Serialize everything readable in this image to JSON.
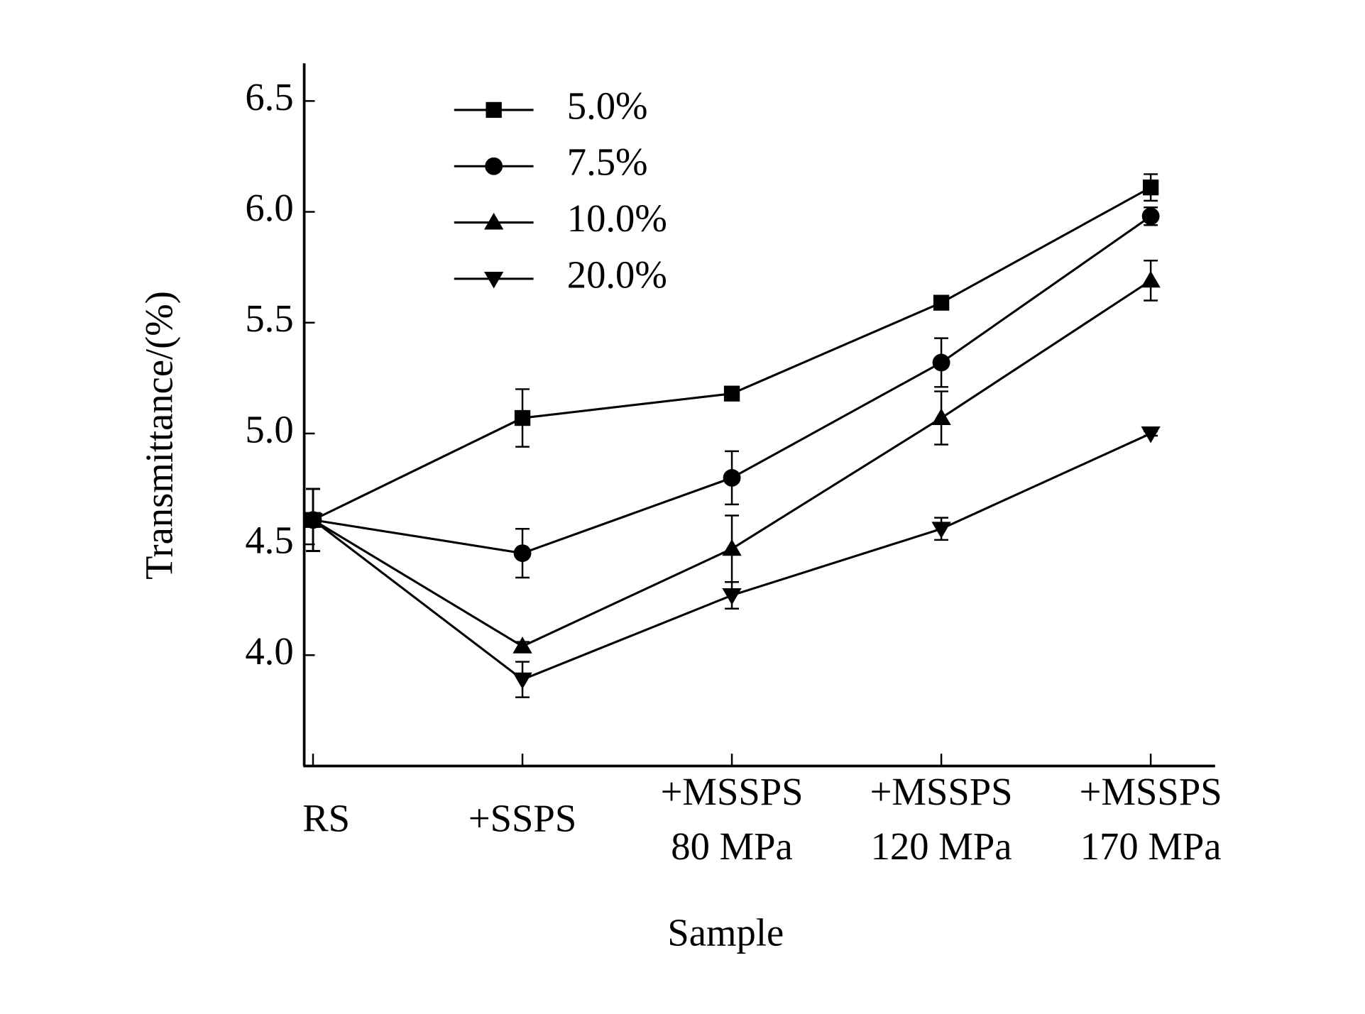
{
  "chart_data": {
    "type": "line",
    "x_label": "Sample",
    "y_label": "Transmittance/(%)",
    "categories": [
      [
        "RS"
      ],
      [
        "+SSPS"
      ],
      [
        "+MSSPS",
        "80 MPa"
      ],
      [
        "+MSSPS",
        "120 MPa"
      ],
      [
        "+MSSPS",
        "170 MPa"
      ]
    ],
    "series": [
      {
        "name": "5.0%",
        "color": "#000000",
        "marker": "square",
        "values": [
          4.61,
          5.07,
          5.18,
          5.59,
          6.11
        ],
        "errors": [
          0.14,
          0.13,
          0.03,
          0.02,
          0.06
        ]
      },
      {
        "name": "7.5%",
        "color": "#000000",
        "marker": "circle",
        "values": [
          4.61,
          4.46,
          4.8,
          5.32,
          5.98
        ],
        "errors": [
          0.14,
          0.11,
          0.12,
          0.11,
          0.04
        ]
      },
      {
        "name": "10.0%",
        "color": "#000000",
        "marker": "triangle-up",
        "values": [
          4.61,
          4.04,
          4.48,
          5.07,
          5.69
        ],
        "errors": [
          0.14,
          0.02,
          0.15,
          0.12,
          0.09
        ]
      },
      {
        "name": "20.0%",
        "color": "#000000",
        "marker": "triangle-down",
        "values": [
          4.61,
          3.89,
          4.27,
          4.57,
          5.0
        ],
        "errors": [
          0.14,
          0.08,
          0.06,
          0.05,
          0.01
        ]
      }
    ],
    "ylim": [
      3.5,
      6.67
    ],
    "yticks": [
      {
        "value": 4,
        "label": "4.0"
      },
      4.5,
      {
        "value": 5,
        "label": "5.0"
      },
      5.5,
      {
        "value": 6,
        "label": "6.0"
      },
      6.5
    ],
    "legend": "upper left",
    "grid": false
  }
}
